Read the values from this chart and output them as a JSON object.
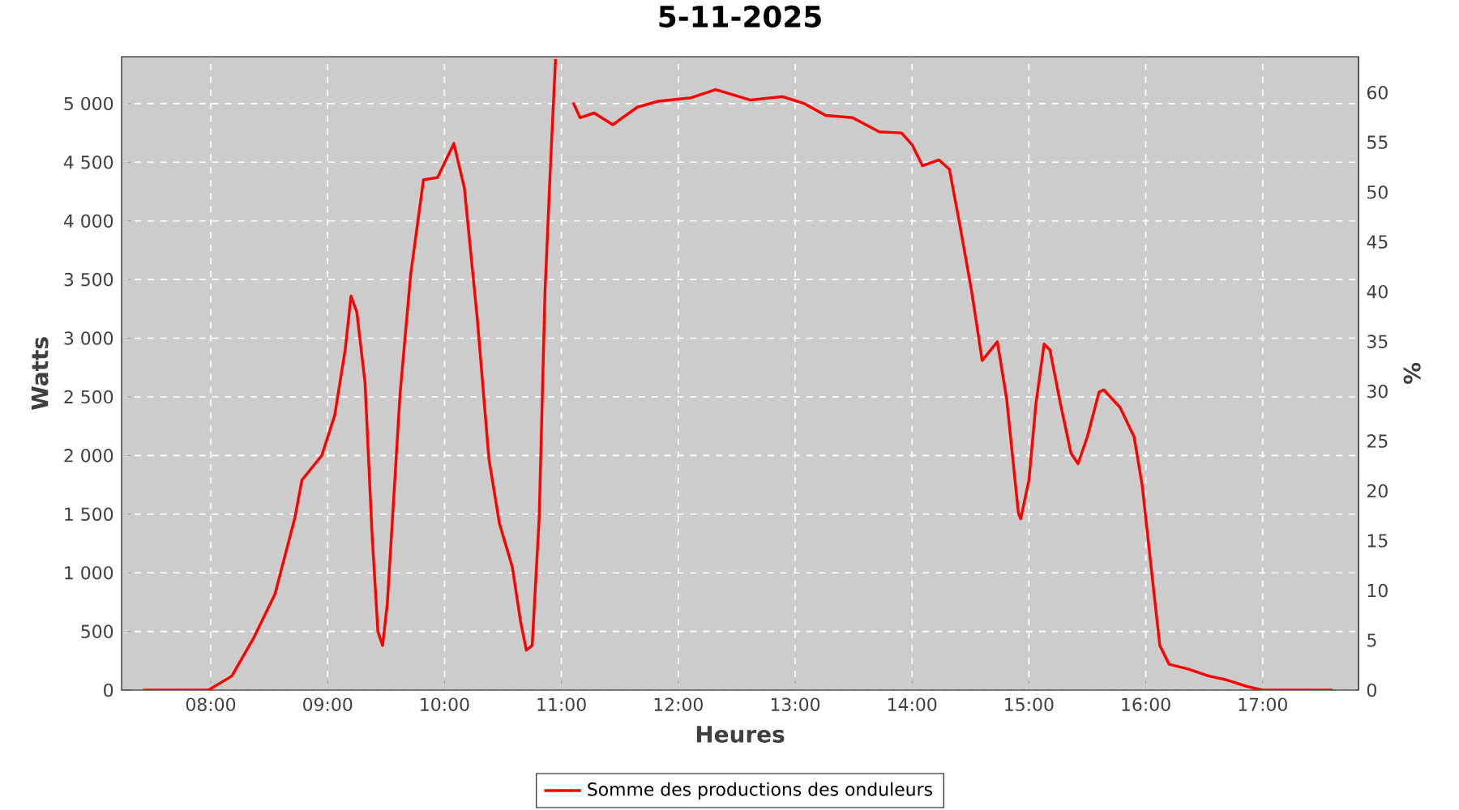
{
  "chart_data": {
    "type": "line",
    "title": "5-11-2025",
    "xlabel": "Heures",
    "ylabel": "Watts",
    "y2label": "%",
    "x": [
      7.42,
      7.98,
      8.18,
      8.37,
      8.55,
      8.72,
      8.78,
      8.95,
      9.06,
      9.15,
      9.2,
      9.25,
      9.32,
      9.38,
      9.43,
      9.47,
      9.51,
      9.62,
      9.71,
      9.82,
      9.94,
      10.08,
      10.17,
      10.28,
      10.38,
      10.47,
      10.58,
      10.65,
      10.7,
      10.75,
      10.81,
      10.86,
      10.91,
      10.95,
      10.97,
      11.04,
      11.1,
      11.16,
      11.28,
      11.44,
      11.65,
      11.83,
      12.11,
      12.32,
      12.62,
      12.89,
      13.08,
      13.26,
      13.49,
      13.72,
      13.91,
      14.0,
      14.09,
      14.23,
      14.32,
      14.41,
      14.51,
      14.6,
      14.73,
      14.81,
      14.91,
      14.93,
      15.0,
      15.06,
      15.13,
      15.18,
      15.27,
      15.36,
      15.42,
      15.5,
      15.6,
      15.64,
      15.78,
      15.9,
      15.97,
      16.04,
      16.12,
      16.2,
      16.36,
      16.54,
      16.68,
      16.87,
      17.0,
      17.6
    ],
    "series": [
      {
        "name": "Somme des productions des onduleurs",
        "color": "#ff0000",
        "values": [
          0,
          0,
          120,
          450,
          820,
          1470,
          1790,
          2000,
          2340,
          2900,
          3360,
          3220,
          2620,
          1330,
          500,
          380,
          730,
          2530,
          3540,
          4350,
          4370,
          4660,
          4280,
          3170,
          1970,
          1420,
          1050,
          590,
          340,
          380,
          1470,
          3400,
          4550,
          5380,
          null,
          null,
          5010,
          4880,
          4920,
          4820,
          4970,
          5020,
          5050,
          5120,
          5030,
          5060,
          5000,
          4900,
          4880,
          4760,
          4750,
          4650,
          4470,
          4520,
          4440,
          3960,
          3400,
          2810,
          2970,
          2480,
          1510,
          1460,
          1790,
          2440,
          2950,
          2900,
          2440,
          2020,
          1930,
          2160,
          2540,
          2560,
          2410,
          2160,
          1740,
          1100,
          380,
          220,
          180,
          120,
          90,
          30,
          0,
          0
        ]
      }
    ],
    "xlim": [
      7.237,
      17.82
    ],
    "ylim": [
      0,
      5400
    ],
    "y2lim": [
      0,
      63.6
    ],
    "xticks": [
      {
        "value": 8,
        "label": "08:00"
      },
      {
        "value": 9,
        "label": "09:00"
      },
      {
        "value": 10,
        "label": "10:00"
      },
      {
        "value": 11,
        "label": "11:00"
      },
      {
        "value": 12,
        "label": "12:00"
      },
      {
        "value": 13,
        "label": "13:00"
      },
      {
        "value": 14,
        "label": "14:00"
      },
      {
        "value": 15,
        "label": "15:00"
      },
      {
        "value": 16,
        "label": "16:00"
      },
      {
        "value": 17,
        "label": "17:00"
      }
    ],
    "yticks": [
      0,
      500,
      {
        "value": 1000,
        "label": "1 000"
      },
      {
        "value": 1500,
        "label": "1 500"
      },
      {
        "value": 2000,
        "label": "2 000"
      },
      {
        "value": 2500,
        "label": "2 500"
      },
      {
        "value": 3000,
        "label": "3 000"
      },
      {
        "value": 3500,
        "label": "3 500"
      },
      {
        "value": 4000,
        "label": "4 000"
      },
      {
        "value": 4500,
        "label": "4 500"
      },
      {
        "value": 5000,
        "label": "5 000"
      }
    ],
    "y2ticks": [
      0,
      5,
      10,
      15,
      20,
      25,
      30,
      35,
      40,
      45,
      50,
      55,
      60
    ],
    "grid": true,
    "legend": "bottom",
    "line_style": "solid"
  }
}
